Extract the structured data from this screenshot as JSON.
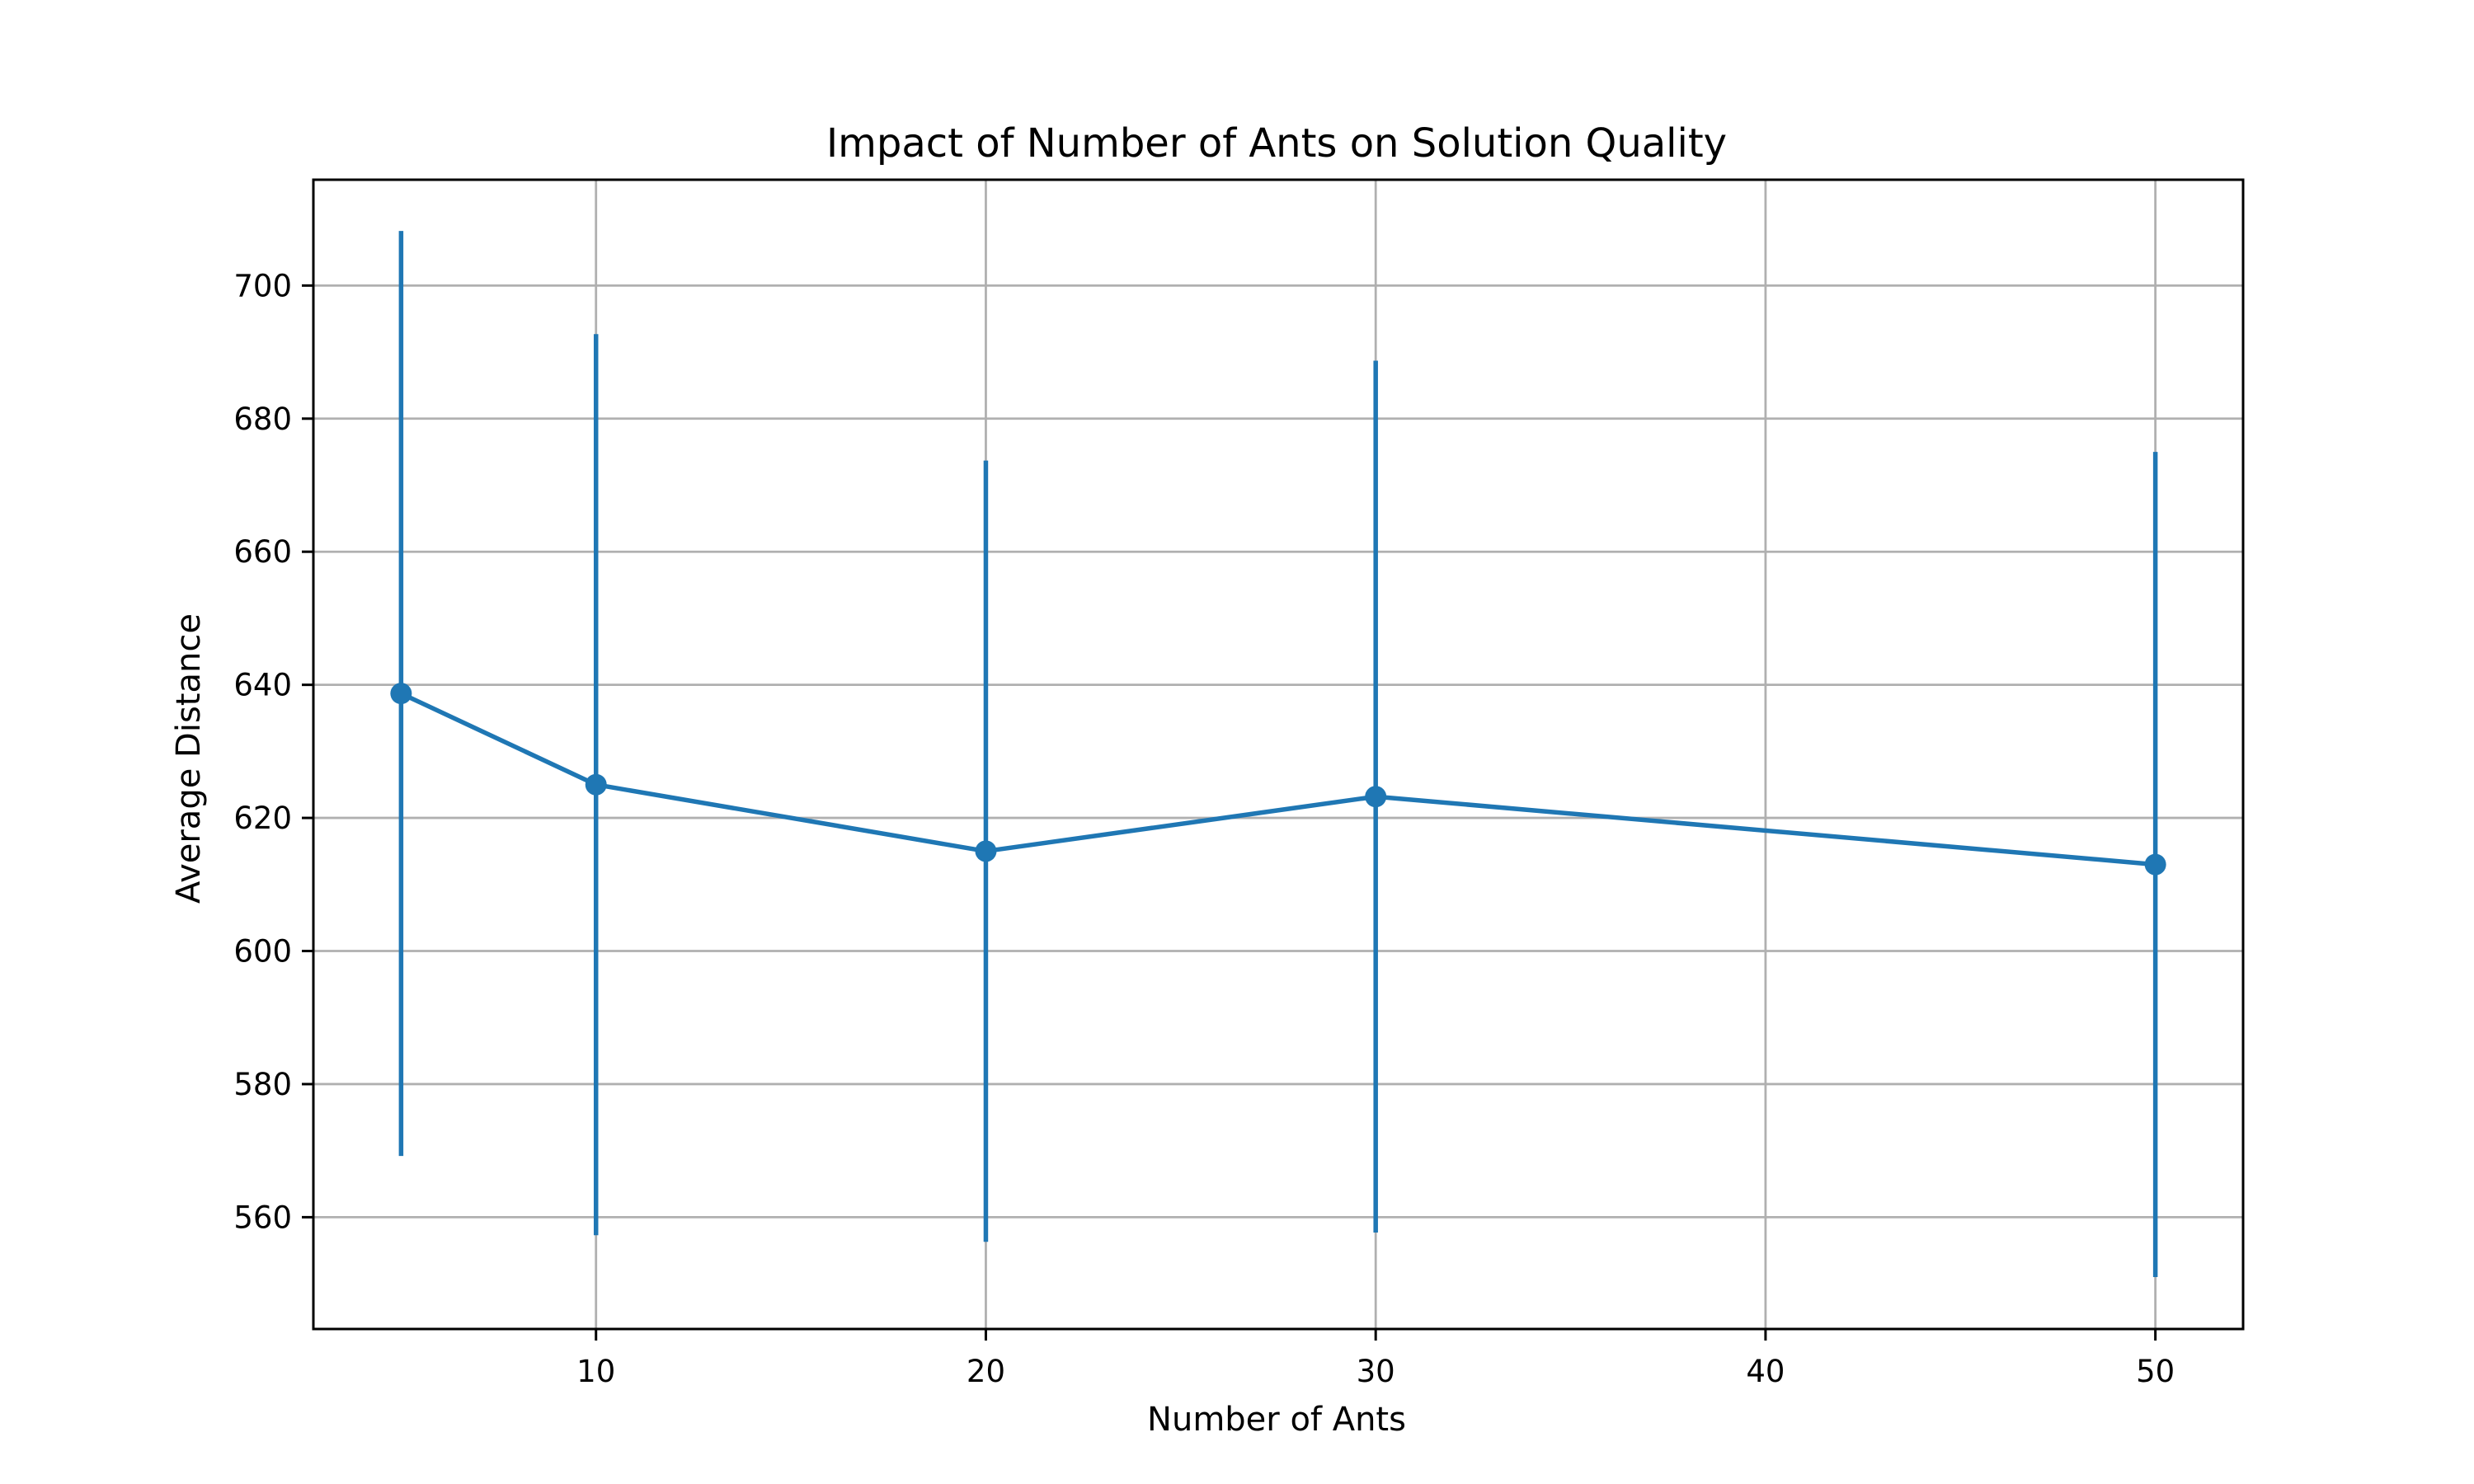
{
  "chart_data": {
    "type": "line",
    "title": "Impact of Number of Ants on Solution Quality",
    "xlabel": "Number of Ants",
    "ylabel": "Average Distance",
    "x": [
      5,
      10,
      20,
      30,
      50
    ],
    "series": [
      {
        "values": [
          638.7,
          625.0,
          615.0,
          623.2,
          613.0
        ],
        "error": [
          69.5,
          67.7,
          58.7,
          65.5,
          62.0
        ]
      }
    ],
    "xlim": [
      2.75,
      52.25
    ],
    "ylim": [
      543.2,
      715.9
    ],
    "xticks": [
      10,
      20,
      30,
      40,
      50
    ],
    "yticks": [
      560,
      580,
      600,
      620,
      640,
      660,
      680,
      700
    ],
    "grid": true,
    "colors": {
      "series": "#1f77b4"
    }
  }
}
